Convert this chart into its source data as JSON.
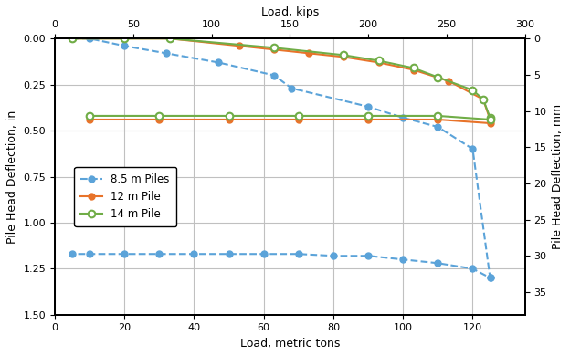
{
  "title_top": "Load, kips",
  "title_bottom": "Load, metric tons",
  "ylabel_left": "Pile Head Deflection, in",
  "ylabel_right": "Pile Head Deflection, mm",
  "xlim_tons": [
    0,
    135
  ],
  "xlim_kips": [
    0,
    300
  ],
  "ylim_in": [
    1.5,
    0.0
  ],
  "ylim_mm": [
    38.1,
    0.0
  ],
  "xticks_tons": [
    0,
    20,
    40,
    60,
    80,
    100,
    120
  ],
  "xticks_kips": [
    0,
    50,
    100,
    150,
    200,
    250,
    300
  ],
  "yticks_in": [
    0.0,
    0.25,
    0.5,
    0.75,
    1.0,
    1.25,
    1.5
  ],
  "yticks_mm": [
    0,
    5,
    10,
    15,
    20,
    25,
    30,
    35
  ],
  "pile85_load": [
    5,
    10,
    20,
    32,
    47,
    63,
    68,
    90,
    100,
    110,
    120,
    125,
    125,
    120,
    110,
    100,
    90,
    80,
    70,
    60,
    50,
    40,
    30,
    20,
    10,
    5
  ],
  "pile85_defl": [
    0.0,
    0.0,
    0.04,
    0.08,
    0.13,
    0.2,
    0.27,
    0.37,
    0.43,
    0.48,
    0.6,
    1.3,
    1.3,
    1.25,
    1.22,
    1.2,
    1.18,
    1.18,
    1.17,
    1.17,
    1.17,
    1.17,
    1.17,
    1.17,
    1.17,
    1.17
  ],
  "pile12_load": [
    5,
    20,
    33,
    53,
    63,
    73,
    83,
    93,
    103,
    113,
    123,
    125,
    125,
    110,
    90,
    70,
    50,
    30,
    10
  ],
  "pile12_defl": [
    0.0,
    0.0,
    0.0,
    0.04,
    0.06,
    0.08,
    0.1,
    0.13,
    0.17,
    0.23,
    0.33,
    0.44,
    0.46,
    0.44,
    0.44,
    0.44,
    0.44,
    0.44,
    0.44
  ],
  "pile14_load": [
    5,
    20,
    33,
    63,
    83,
    93,
    103,
    110,
    120,
    123,
    125,
    125,
    110,
    90,
    70,
    50,
    30,
    10
  ],
  "pile14_defl": [
    0.0,
    0.0,
    0.0,
    0.05,
    0.09,
    0.12,
    0.16,
    0.21,
    0.28,
    0.33,
    0.43,
    0.44,
    0.42,
    0.42,
    0.42,
    0.42,
    0.42,
    0.42
  ],
  "color_85": "#5BA3D9",
  "color_12": "#E8732A",
  "color_14": "#70AD47",
  "bg_color": "#FFFFFF",
  "grid_color": "#C0C0C0"
}
